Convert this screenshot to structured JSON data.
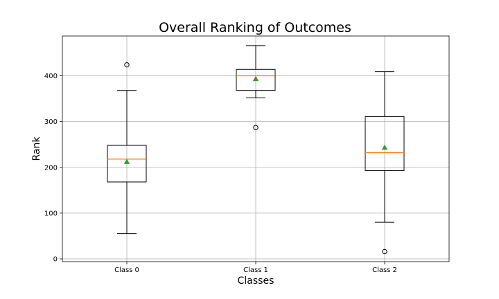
{
  "chart_data": {
    "type": "box",
    "title": "Overall Ranking of Outcomes",
    "xlabel": "Classes",
    "ylabel": "Rank",
    "ylim": [
      -6,
      487
    ],
    "yticks": [
      0,
      100,
      200,
      300,
      400
    ],
    "grid": true,
    "categories": [
      "Class 0",
      "Class 1",
      "Class 2"
    ],
    "boxes": [
      {
        "category": "Class 0",
        "whisker_low": 55,
        "q1": 168,
        "median": 218,
        "q3": 248,
        "whisker_high": 368,
        "mean": 212,
        "outliers": [
          424
        ]
      },
      {
        "category": "Class 1",
        "whisker_low": 352,
        "q1": 368,
        "median": 400,
        "q3": 414,
        "whisker_high": 466,
        "mean": 393,
        "outliers": [
          287
        ]
      },
      {
        "category": "Class 2",
        "whisker_low": 80,
        "q1": 193,
        "median": 232,
        "q3": 311,
        "whisker_high": 409,
        "mean": 243,
        "outliers": [
          16
        ]
      }
    ],
    "colors": {
      "median": "#ff7f0e",
      "mean": "#2ca02c",
      "grid": "#b0b0b0"
    }
  }
}
